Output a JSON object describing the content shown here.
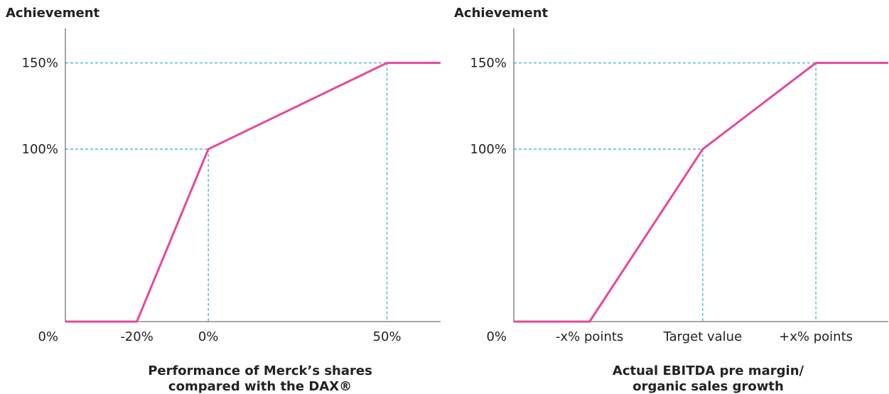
{
  "chart_data": [
    {
      "type": "line",
      "ylabel": "Achievement",
      "xlabel": [
        "Performance of Merck’s shares",
        "compared with the DAX®"
      ],
      "x": [
        -40,
        -20,
        0,
        50,
        65
      ],
      "series": [
        {
          "color": "#e8479b",
          "values": [
            0,
            0,
            100,
            150,
            150
          ]
        }
      ],
      "xlim": [
        -40,
        65
      ],
      "xticks": [
        {
          "value": -20,
          "label": "-20%"
        },
        {
          "value": 0,
          "label": "0%"
        },
        {
          "value": 50,
          "label": "50%"
        }
      ],
      "ylim": [
        0,
        170
      ],
      "yticks": [
        {
          "value": 0,
          "label": "0%"
        },
        {
          "value": 100,
          "label": "100%"
        },
        {
          "value": 150,
          "label": "150%"
        }
      ],
      "guide_color": "#3bb6c6"
    },
    {
      "type": "line",
      "ylabel": "Achievement",
      "xlabel": [
        "Actual EBITDA pre margin/",
        "organic sales growth"
      ],
      "x": [
        -1.67,
        -1,
        0,
        1,
        1.64
      ],
      "series": [
        {
          "color": "#e8479b",
          "values": [
            0,
            0,
            100,
            150,
            150
          ]
        }
      ],
      "xlim": [
        -1.67,
        1.64
      ],
      "xticks": [
        {
          "value": -1,
          "label": "-x% points"
        },
        {
          "value": 0,
          "label": "Target value"
        },
        {
          "value": 1,
          "label": "+x% points"
        }
      ],
      "ylim": [
        0,
        170
      ],
      "yticks": [
        {
          "value": 0,
          "label": "0%"
        },
        {
          "value": 100,
          "label": "100%"
        },
        {
          "value": 150,
          "label": "150%"
        }
      ],
      "guide_color": "#3bb6c6"
    }
  ]
}
